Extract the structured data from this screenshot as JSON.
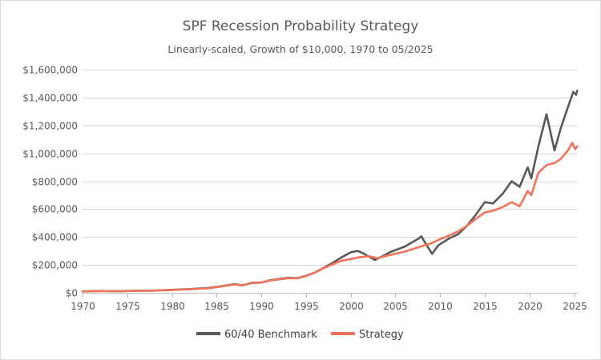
{
  "chart_data": {
    "type": "line",
    "title": "SPF Recession Probability Strategy",
    "subtitle": "Linearly-scaled, Growth of $10,000, 1970 to 05/2025",
    "xlabel": "",
    "ylabel": "",
    "xlim": [
      1970,
      2025.4
    ],
    "ylim": [
      0,
      1600000
    ],
    "x_ticks": [
      1970,
      1975,
      1980,
      1985,
      1990,
      1995,
      2000,
      2005,
      2010,
      2015,
      2020,
      2025
    ],
    "y_ticks": [
      0,
      200000,
      400000,
      600000,
      800000,
      1000000,
      1200000,
      1400000,
      1600000
    ],
    "y_tick_labels": [
      "$0",
      "$200,000",
      "$400,000",
      "$600,000",
      "$800,000",
      "$1,000,000",
      "$1,200,000",
      "$1,400,000",
      "$1,600,000"
    ],
    "grid": "horizontal",
    "legend_position": "bottom",
    "series": [
      {
        "name": "60/40 Benchmark",
        "color": "#595959",
        "points": [
          [
            1970,
            10000
          ],
          [
            1972,
            13000
          ],
          [
            1974,
            11000
          ],
          [
            1976,
            15000
          ],
          [
            1978,
            16000
          ],
          [
            1980,
            21000
          ],
          [
            1982,
            27000
          ],
          [
            1984,
            34000
          ],
          [
            1985,
            42000
          ],
          [
            1986,
            52000
          ],
          [
            1987,
            62000
          ],
          [
            1987.9,
            53000
          ],
          [
            1989,
            72000
          ],
          [
            1990,
            73000
          ],
          [
            1991,
            90000
          ],
          [
            1993,
            108000
          ],
          [
            1994,
            105000
          ],
          [
            1995,
            122000
          ],
          [
            1996,
            145000
          ],
          [
            1997,
            180000
          ],
          [
            1998,
            215000
          ],
          [
            1999,
            255000
          ],
          [
            2000,
            290000
          ],
          [
            2000.8,
            300000
          ],
          [
            2001.5,
            280000
          ],
          [
            2002.7,
            235000
          ],
          [
            2003.5,
            260000
          ],
          [
            2004.5,
            295000
          ],
          [
            2006,
            330000
          ],
          [
            2007.5,
            385000
          ],
          [
            2007.9,
            405000
          ],
          [
            2008.5,
            340000
          ],
          [
            2009.1,
            280000
          ],
          [
            2009.8,
            340000
          ],
          [
            2011,
            390000
          ],
          [
            2012,
            420000
          ],
          [
            2013,
            480000
          ],
          [
            2014,
            560000
          ],
          [
            2015,
            650000
          ],
          [
            2015.9,
            640000
          ],
          [
            2017,
            710000
          ],
          [
            2018,
            800000
          ],
          [
            2018.9,
            760000
          ],
          [
            2019.8,
            900000
          ],
          [
            2020.2,
            820000
          ],
          [
            2021,
            1050000
          ],
          [
            2021.9,
            1280000
          ],
          [
            2022.8,
            1020000
          ],
          [
            2023.5,
            1180000
          ],
          [
            2024.3,
            1330000
          ],
          [
            2024.9,
            1440000
          ],
          [
            2025.2,
            1420000
          ],
          [
            2025.35,
            1450000
          ]
        ]
      },
      {
        "name": "Strategy",
        "color": "#f2735a",
        "points": [
          [
            1970,
            10000
          ],
          [
            1972,
            12500
          ],
          [
            1974,
            11500
          ],
          [
            1976,
            14000
          ],
          [
            1978,
            15500
          ],
          [
            1980,
            20000
          ],
          [
            1982,
            25000
          ],
          [
            1984,
            32000
          ],
          [
            1985,
            40000
          ],
          [
            1986,
            50000
          ],
          [
            1987,
            60000
          ],
          [
            1987.9,
            55000
          ],
          [
            1989,
            70000
          ],
          [
            1990,
            74000
          ],
          [
            1991,
            88000
          ],
          [
            1993,
            105000
          ],
          [
            1994,
            104000
          ],
          [
            1995,
            120000
          ],
          [
            1996,
            145000
          ],
          [
            1997,
            178000
          ],
          [
            1998,
            205000
          ],
          [
            1999,
            230000
          ],
          [
            2000,
            242000
          ],
          [
            2001,
            255000
          ],
          [
            2002,
            262000
          ],
          [
            2003,
            248000
          ],
          [
            2004,
            265000
          ],
          [
            2005,
            280000
          ],
          [
            2006,
            295000
          ],
          [
            2007,
            315000
          ],
          [
            2008,
            335000
          ],
          [
            2009,
            355000
          ],
          [
            2010,
            385000
          ],
          [
            2011,
            410000
          ],
          [
            2012,
            440000
          ],
          [
            2013,
            480000
          ],
          [
            2014,
            530000
          ],
          [
            2015,
            575000
          ],
          [
            2016,
            590000
          ],
          [
            2017,
            615000
          ],
          [
            2018,
            650000
          ],
          [
            2018.9,
            620000
          ],
          [
            2019.8,
            730000
          ],
          [
            2020.2,
            700000
          ],
          [
            2021,
            860000
          ],
          [
            2021.9,
            915000
          ],
          [
            2022.8,
            930000
          ],
          [
            2023.5,
            960000
          ],
          [
            2024.3,
            1020000
          ],
          [
            2024.8,
            1075000
          ],
          [
            2025.1,
            1030000
          ],
          [
            2025.35,
            1050000
          ]
        ]
      }
    ]
  }
}
